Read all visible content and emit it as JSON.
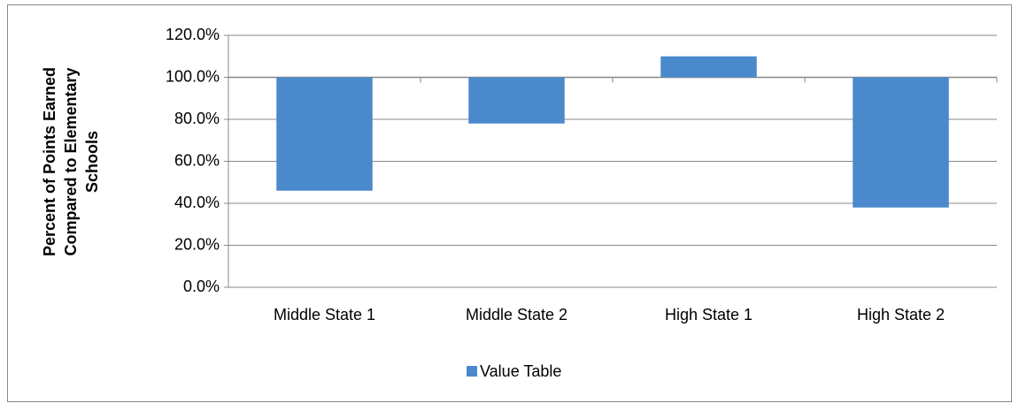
{
  "chart_data": {
    "type": "bar",
    "y_axis_title": "Percent of Points Earned Compared to Elementary Schools",
    "categories": [
      "Middle State 1",
      "Middle State 2",
      "High State 1",
      "High State 2"
    ],
    "series": [
      {
        "name": "Value Table",
        "color": "#4a89cc",
        "values": [
          46,
          78,
          110,
          38
        ]
      }
    ],
    "base": 100,
    "ylim": [
      0,
      120
    ],
    "yticks": [
      {
        "value": 0,
        "label": "0.0%"
      },
      {
        "value": 20,
        "label": "20.0%"
      },
      {
        "value": 40,
        "label": "40.0%"
      },
      {
        "value": 60,
        "label": "60.0%"
      },
      {
        "value": 80,
        "label": "80.0%"
      },
      {
        "value": 100,
        "label": "100.0%"
      },
      {
        "value": 120,
        "label": "120.0%"
      }
    ],
    "grid": true,
    "legend": "bottom"
  }
}
